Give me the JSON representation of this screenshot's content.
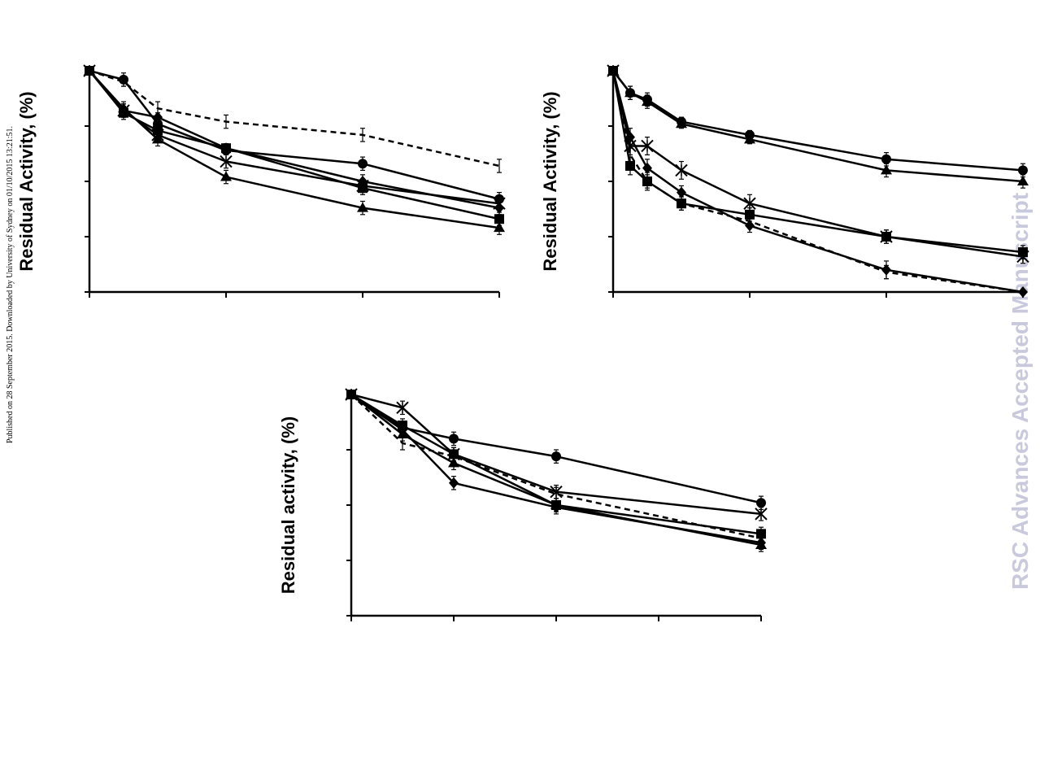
{
  "published_note": "Published on 28 September 2015. Downloaded by University of Sydney on 01/10/2015 13:21:51.",
  "watermark": "RSC Advances Accepted Manuscript",
  "colors": {
    "line": "#000000",
    "watermark": "#c9c9dd"
  },
  "chart_data": [
    {
      "type": "line",
      "title": "",
      "xlabel": "",
      "ylabel": "Residual Activity, (%)",
      "xlim": [
        0,
        6
      ],
      "ylim": [
        0,
        100
      ],
      "grid": false,
      "series": [
        {
          "marker": "circle",
          "dashed": false,
          "x": [
            0,
            0.5,
            1,
            2,
            4,
            6
          ],
          "y": [
            100,
            96,
            76,
            64,
            58,
            42
          ],
          "err": [
            0,
            3,
            2,
            2,
            3,
            3
          ]
        },
        {
          "marker": "diamond",
          "dashed": false,
          "x": [
            0,
            0.5,
            1,
            2,
            4,
            6
          ],
          "y": [
            100,
            82,
            79,
            65,
            50,
            38
          ],
          "err": [
            0,
            3,
            2,
            2,
            3,
            3
          ]
        },
        {
          "marker": "square",
          "dashed": false,
          "x": [
            0,
            0.5,
            1,
            2,
            4,
            6
          ],
          "y": [
            100,
            81,
            73,
            65,
            47,
            33
          ],
          "err": [
            0,
            3,
            2,
            2,
            3,
            3
          ]
        },
        {
          "marker": "triangle",
          "dashed": false,
          "x": [
            0,
            0.5,
            1,
            2,
            4,
            6
          ],
          "y": [
            100,
            83,
            69,
            52,
            38,
            29
          ],
          "err": [
            0,
            3,
            3,
            3,
            3,
            3
          ]
        },
        {
          "marker": "star",
          "dashed": false,
          "x": [
            0,
            0.5,
            1,
            2,
            4,
            6
          ],
          "y": [
            100,
            82,
            71,
            59,
            48,
            40
          ],
          "err": [
            0,
            3,
            2,
            3,
            3,
            3
          ]
        },
        {
          "marker": "none",
          "dashed": true,
          "x": [
            0,
            0.5,
            1,
            2,
            4,
            6
          ],
          "y": [
            100,
            95,
            83,
            77,
            71,
            57
          ],
          "err": [
            0,
            2,
            3,
            3,
            3,
            3
          ]
        }
      ]
    },
    {
      "type": "line",
      "title": "",
      "xlabel": "",
      "ylabel": "Residual Activity, (%)",
      "xlim": [
        0,
        6
      ],
      "ylim": [
        0,
        100
      ],
      "grid": false,
      "series": [
        {
          "marker": "circle",
          "dashed": false,
          "x": [
            0,
            0.25,
            0.5,
            1,
            2,
            4,
            6
          ],
          "y": [
            100,
            90,
            87,
            77,
            71,
            60,
            55
          ],
          "err": [
            0,
            3,
            3,
            2,
            2,
            3,
            3
          ]
        },
        {
          "marker": "triangle",
          "dashed": false,
          "x": [
            0,
            0.25,
            0.5,
            1,
            2,
            4,
            6
          ],
          "y": [
            100,
            90,
            86,
            76,
            69,
            55,
            50
          ],
          "err": [
            0,
            3,
            3,
            2,
            2,
            3,
            3
          ]
        },
        {
          "marker": "star",
          "dashed": false,
          "x": [
            0,
            0.25,
            0.5,
            1,
            2,
            4,
            6
          ],
          "y": [
            100,
            66,
            66,
            55,
            40,
            25,
            16
          ],
          "err": [
            0,
            4,
            4,
            4,
            4,
            3,
            3
          ]
        },
        {
          "marker": "square",
          "dashed": false,
          "x": [
            0,
            0.25,
            0.5,
            1,
            2,
            4,
            6
          ],
          "y": [
            100,
            57,
            50,
            40,
            35,
            25,
            18
          ],
          "err": [
            0,
            4,
            4,
            3,
            3,
            3,
            3
          ]
        },
        {
          "marker": "diamond",
          "dashed": false,
          "x": [
            0,
            0.25,
            0.5,
            1,
            2,
            4,
            6
          ],
          "y": [
            100,
            70,
            56,
            45,
            30,
            10,
            0
          ],
          "err": [
            0,
            4,
            4,
            3,
            3,
            4,
            0
          ]
        },
        {
          "marker": "none",
          "dashed": true,
          "x": [
            0,
            0.25,
            0.5,
            1,
            2,
            4,
            6
          ],
          "y": [
            100,
            62,
            50,
            40,
            32,
            9,
            0
          ],
          "err": [
            0,
            3,
            3,
            3,
            3,
            3,
            0
          ]
        }
      ]
    },
    {
      "type": "line",
      "title": "",
      "xlabel": "",
      "ylabel": "Residual activity, (%)",
      "xlim": [
        0,
        4
      ],
      "ylim": [
        0,
        100
      ],
      "grid": false,
      "series": [
        {
          "marker": "circle",
          "dashed": false,
          "x": [
            0,
            0.5,
            1,
            2,
            4
          ],
          "y": [
            100,
            85,
            80,
            72,
            51
          ],
          "err": [
            0,
            2,
            3,
            3,
            3
          ]
        },
        {
          "marker": "star",
          "dashed": false,
          "x": [
            0,
            0.5,
            1,
            2,
            4
          ],
          "y": [
            100,
            94,
            73,
            56,
            46
          ],
          "err": [
            0,
            3,
            3,
            3,
            3
          ]
        },
        {
          "marker": "square",
          "dashed": false,
          "x": [
            0,
            0.5,
            1,
            2,
            4
          ],
          "y": [
            100,
            86,
            73,
            50,
            37
          ],
          "err": [
            0,
            3,
            3,
            3,
            3
          ]
        },
        {
          "marker": "triangle",
          "dashed": false,
          "x": [
            0,
            0.5,
            1,
            2,
            4
          ],
          "y": [
            100,
            82,
            69,
            50,
            32
          ],
          "err": [
            0,
            3,
            3,
            3,
            3
          ]
        },
        {
          "marker": "diamond",
          "dashed": false,
          "x": [
            0,
            0.5,
            1,
            2,
            4
          ],
          "y": [
            100,
            84,
            60,
            49,
            33
          ],
          "err": [
            0,
            3,
            3,
            3,
            3
          ]
        },
        {
          "marker": "none",
          "dashed": true,
          "x": [
            0,
            0.5,
            1,
            2,
            4
          ],
          "y": [
            100,
            78,
            72,
            55,
            35
          ],
          "err": [
            0,
            3,
            3,
            3,
            3
          ]
        }
      ]
    }
  ]
}
